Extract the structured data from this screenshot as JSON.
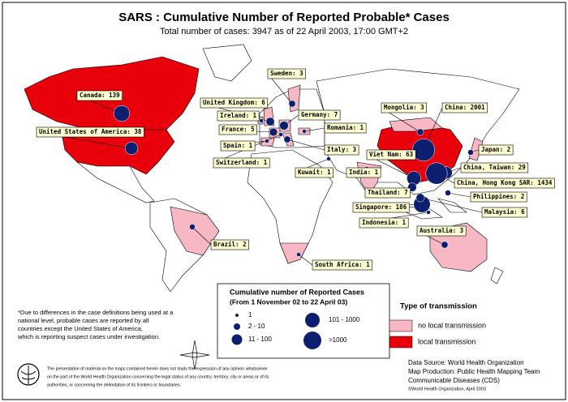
{
  "title": "SARS : Cumulative Number of Reported Probable* Cases",
  "subtitle": "Total number of cases: 3947 as of 22 April 2003, 17:00 GMT+2",
  "countries": [
    {
      "label": "Canada: 139",
      "cases": 139
    },
    {
      "label": "United States of America: 38",
      "cases": 38
    },
    {
      "label": "United Kingdom: 6",
      "cases": 6
    },
    {
      "label": "Ireland: 1",
      "cases": 1
    },
    {
      "label": "France: 5",
      "cases": 5
    },
    {
      "label": "Spain: 1",
      "cases": 1
    },
    {
      "label": "Switzerland: 1",
      "cases": 1
    },
    {
      "label": "Sweden: 3",
      "cases": 3
    },
    {
      "label": "Germany: 7",
      "cases": 7
    },
    {
      "label": "Romania: 1",
      "cases": 1
    },
    {
      "label": "Italy: 3",
      "cases": 3
    },
    {
      "label": "Kuwait: 1",
      "cases": 1
    },
    {
      "label": "India: 1",
      "cases": 1
    },
    {
      "label": "Mongolia: 3",
      "cases": 3
    },
    {
      "label": "China: 2001",
      "cases": 2001
    },
    {
      "label": "Viet Nam: 63",
      "cases": 63
    },
    {
      "label": "Japan: 2",
      "cases": 2
    },
    {
      "label": "China, Taiwan: 29",
      "cases": 29
    },
    {
      "label": "China, Hong Kong SAR: 1434",
      "cases": 1434
    },
    {
      "label": "Thailand: 7",
      "cases": 7
    },
    {
      "label": "Philippines: 2",
      "cases": 2
    },
    {
      "label": "Singapore: 186",
      "cases": 186
    },
    {
      "label": "Malaysia: 6",
      "cases": 6
    },
    {
      "label": "Indonesia: 1",
      "cases": 1
    },
    {
      "label": "Australia: 3",
      "cases": 3
    },
    {
      "label": "Brazil: 2",
      "cases": 2
    },
    {
      "label": "South Africa: 1",
      "cases": 1
    }
  ],
  "legend": {
    "title": "Cumulative number of Reported Cases",
    "period": "(From 1 November 02 to 22 April 03)",
    "classes": [
      "1",
      "2 - 10",
      "11 - 100",
      "101 - 1000",
      ">1000"
    ]
  },
  "transmission": {
    "title": "Type of transmission",
    "items": [
      "no local transmission",
      "local transmission"
    ]
  },
  "footnote": [
    "*Due to differences in the case definitions being used at a",
    "national level, probable cases are reported by all",
    "countries except the United States of America,",
    "which is reporting suspect cases under investigation."
  ],
  "disclaimer": [
    "The presentation of material on the maps contained herein does not imply the expression of any opinion whatsoever",
    "on the part of the World Health Organization concerning the legal status of any country, territory, city or areas or of its",
    "authorities, or concerning the delimitation of its frontiers or boundaries."
  ],
  "credits": [
    "Data Source: World Health Organization",
    "Map Production: Public Health Mapping Team",
    "Communicable Diseases (CDS)",
    "©World Health Organization, April 2003"
  ]
}
